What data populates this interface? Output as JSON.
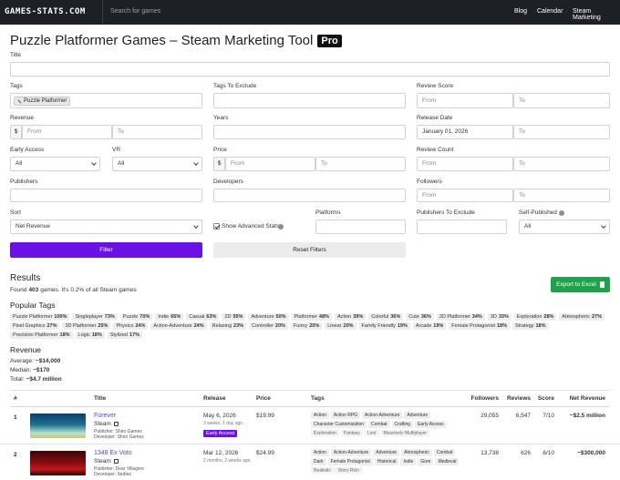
{
  "header": {
    "logo": "GAMES-STATS.COM",
    "search_placeholder": "Search for games",
    "nav": [
      "Blog",
      "Calendar",
      "Steam Marketing"
    ]
  },
  "page": {
    "title": "Puzzle Platformer Games – Steam Marketing Tool",
    "badge": "Pro"
  },
  "filters": {
    "title": "Title",
    "tags": "Tags",
    "tag_chip": "Puzzle Platformer",
    "tags_exclude": "Tags To Exclude",
    "review_score": "Review Score",
    "revenue": "Revenue",
    "years": "Years",
    "release_date": "Release Date",
    "release_date_from": "January 01, 2026",
    "early_access": "Early Access",
    "early_access_value": "All",
    "vr": "VR",
    "vr_value": "All",
    "price": "Price",
    "review_count": "Review Count",
    "publishers": "Publishers",
    "developers": "Developers",
    "followers": "Followers",
    "sort": "Sort",
    "sort_value": "Net Revenue",
    "advanced_stats": "Show Advanced Stats",
    "platforms": "Platforms",
    "publishers_exclude": "Publishers To Exclude",
    "self_published": "Self-Published",
    "self_published_value": "All",
    "placeholder_from": "From",
    "placeholder_to": "To",
    "currency": "$",
    "filter_button": "Filter",
    "reset_button": "Reset Filters"
  },
  "results": {
    "heading": "Results",
    "found_prefix": "Found",
    "count": "403",
    "found_suffix": "games. It's 0.2% of all Steam games",
    "export": "Export to Excel",
    "popular_tags_heading": "Popular Tags",
    "popular_tags": [
      {
        "name": "Puzzle Platformer",
        "share": "100%"
      },
      {
        "name": "Singleplayer",
        "share": "73%"
      },
      {
        "name": "Puzzle",
        "share": "70%"
      },
      {
        "name": "Indie",
        "share": "65%"
      },
      {
        "name": "Casual",
        "share": "63%"
      },
      {
        "name": "2D",
        "share": "55%"
      },
      {
        "name": "Adventure",
        "share": "50%"
      },
      {
        "name": "Platformer",
        "share": "48%"
      },
      {
        "name": "Action",
        "share": "39%"
      },
      {
        "name": "Colorful",
        "share": "36%"
      },
      {
        "name": "Cute",
        "share": "36%"
      },
      {
        "name": "2D Platformer",
        "share": "34%"
      },
      {
        "name": "3D",
        "share": "33%"
      },
      {
        "name": "Exploration",
        "share": "28%"
      },
      {
        "name": "Atmospheric",
        "share": "27%"
      },
      {
        "name": "Pixel Graphics",
        "share": "27%"
      },
      {
        "name": "3D Platformer",
        "share": "25%"
      },
      {
        "name": "Physics",
        "share": "24%"
      },
      {
        "name": "Action-Adventure",
        "share": "24%"
      },
      {
        "name": "Relaxing",
        "share": "23%"
      },
      {
        "name": "Controller",
        "share": "20%"
      },
      {
        "name": "Funny",
        "share": "20%"
      },
      {
        "name": "Linear",
        "share": "20%"
      },
      {
        "name": "Family Friendly",
        "share": "19%"
      },
      {
        "name": "Arcade",
        "share": "19%"
      },
      {
        "name": "Female Protagonist",
        "share": "18%"
      },
      {
        "name": "Strategy",
        "share": "18%"
      },
      {
        "name": "Precision Platformer",
        "share": "18%"
      },
      {
        "name": "Logic",
        "share": "18%"
      },
      {
        "name": "Stylized",
        "share": "17%"
      }
    ],
    "revenue_heading": "Revenue",
    "revenue_stats": [
      {
        "label": "Average:",
        "value": "~$14,000"
      },
      {
        "label": "Median:",
        "value": "~$170"
      },
      {
        "label": "Total:",
        "value": "~$4.7 million"
      }
    ]
  },
  "table": {
    "columns": [
      "#",
      "Title",
      "Release",
      "Price",
      "Tags",
      "Followers",
      "Reviews",
      "Score",
      "Net Revenue"
    ],
    "rows": [
      {
        "rank": "1",
        "title": "Forever",
        "store": "Steam",
        "publisher": "Publisher: Shiro Games",
        "developer": "Developer: Shiro Games",
        "release": "May 6, 2026",
        "release_ago": "3 weeks, 1 day ago",
        "badge": "Early Access",
        "price": "$19.99",
        "tags": [
          "Action",
          "Action RPG",
          "Action-Adventure",
          "Adventure",
          "Character Customization",
          "Combat",
          "Crafting",
          "Early Access",
          "Exploration",
          "Fantasy",
          "Loot",
          "Massively Multiplayer"
        ],
        "followers": "29,055",
        "reviews": "6,547",
        "score": "7/10",
        "net_revenue": "~$2.5 million"
      },
      {
        "rank": "2",
        "title": "1348 Ex Voto",
        "store": "Steam",
        "publisher": "Publisher: Dear Villagers",
        "developer": "Developer: Sedleo",
        "release": "Mar 12, 2026",
        "release_ago": "2 months, 2 weeks ago",
        "price": "$24.99",
        "tags": [
          "Action",
          "Action-Adventure",
          "Adventure",
          "Atmospheric",
          "Combat",
          "Dark",
          "Female Protagonist",
          "Historical",
          "Indie",
          "Gore",
          "Medieval",
          "Realistic",
          "Story Rich"
        ],
        "followers": "13,738",
        "reviews": "626",
        "score": "6/10",
        "net_revenue": "~$300,000"
      }
    ]
  }
}
